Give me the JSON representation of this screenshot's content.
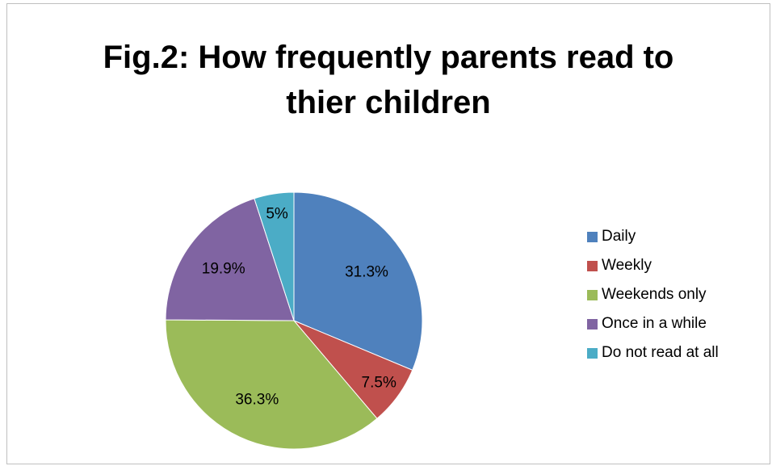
{
  "chart_data": {
    "type": "pie",
    "title": "Fig.2: How frequently parents read to thier children",
    "categories": [
      "Daily",
      "Weekly",
      "Weekends only",
      "Once in a while",
      "Do not read at all"
    ],
    "values": [
      31.3,
      7.5,
      36.3,
      19.9,
      5
    ],
    "data_labels": [
      "31.3%",
      "7.5%",
      "36.3%",
      "19.9%",
      "5%"
    ],
    "colors": [
      "#4f81bd",
      "#c0504d",
      "#9bbb59",
      "#8064a2",
      "#4bacc6"
    ],
    "start_angle": "12 o'clock",
    "direction": "clockwise",
    "legend_position": "right"
  }
}
